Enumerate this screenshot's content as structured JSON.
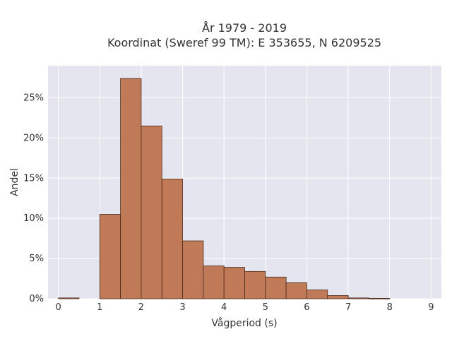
{
  "chart_data": {
    "type": "bar",
    "title_line1": "År 1979 - 2019",
    "title_line2": "Koordinat (Sweref 99 TM): E 353655, N 6209525",
    "xlabel": "Vågperiod (s)",
    "ylabel": "Andel",
    "bin_width": 0.5,
    "x_range": [
      -0.25,
      9.25
    ],
    "ylim": [
      0,
      0.29
    ],
    "x_ticks": [
      0,
      1,
      2,
      3,
      4,
      5,
      6,
      7,
      8,
      9
    ],
    "y_ticks": [
      0,
      0.05,
      0.1,
      0.15,
      0.2,
      0.25
    ],
    "y_tick_labels": [
      "0%",
      "5%",
      "10%",
      "15%",
      "20%",
      "25%"
    ],
    "bars": [
      {
        "x0": 0.0,
        "value": 0.001
      },
      {
        "x0": 1.0,
        "value": 0.105
      },
      {
        "x0": 1.5,
        "value": 0.274
      },
      {
        "x0": 2.0,
        "value": 0.215
      },
      {
        "x0": 2.5,
        "value": 0.149
      },
      {
        "x0": 3.0,
        "value": 0.072
      },
      {
        "x0": 3.5,
        "value": 0.041
      },
      {
        "x0": 4.0,
        "value": 0.039
      },
      {
        "x0": 4.5,
        "value": 0.034
      },
      {
        "x0": 5.0,
        "value": 0.027
      },
      {
        "x0": 5.5,
        "value": 0.02
      },
      {
        "x0": 6.0,
        "value": 0.011
      },
      {
        "x0": 6.5,
        "value": 0.004
      },
      {
        "x0": 7.0,
        "value": 0.001
      },
      {
        "x0": 7.5,
        "value": 0.0005
      }
    ],
    "bar_color": "#c17a57",
    "plot_bg": "#e5e5ef",
    "grid": true,
    "legend": "none"
  }
}
